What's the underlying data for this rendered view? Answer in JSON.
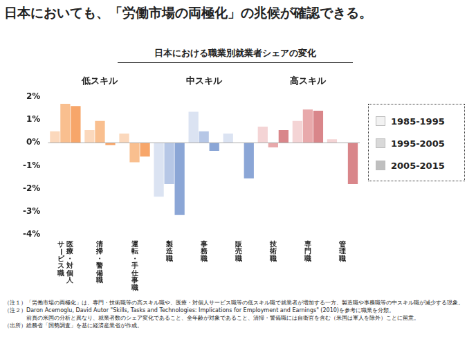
{
  "headline": "日本においても、「労働市場の両極化」の兆候が確認できる。",
  "notes": [
    "（注１）「労働市場の両極化」は、専門・技術職等の高スキル職や、医療・対個人サービス職等の低スキル職で就業者が増加する一方、製造職や事務職等の中スキル職が減少する現象。",
    "（注２）Daron Acemoglu, David Autor \"Skills, Tasks and Technologies: Implications for Employment and Earnings\" (2010)を参考に職業を分類。",
    "　　　　前頁の米国の分析と異なり、就業者数のシェア変化であること、全年齢が対象であること、清掃・警備職には自衛官を含む（米国は軍人を除外）ことに留意。",
    "（出所）総務省「国勢調査」を基に経済産業省が作成。"
  ],
  "chart_data": {
    "type": "bar",
    "title": "日本における職業別就業者シェアの変化",
    "categories": [
      "医療・対個人\nサービス職",
      "清掃・警備職",
      "運転・手仕事職",
      "製造職",
      "事務職",
      "販売職",
      "技術職",
      "専門職",
      "管理職"
    ],
    "groups": [
      {
        "label": "低スキル",
        "size": 3
      },
      {
        "label": "中スキル",
        "size": 3
      },
      {
        "label": "高スキル",
        "size": 3
      }
    ],
    "series": [
      {
        "name": "1985-1995",
        "color": "#f2f2f2",
        "colors": [
          "#fbd8bc",
          "#fbd8bc",
          "#fbd8bc",
          "#dbe3f2",
          "#dbe3f2",
          "#dbe3f2",
          "#f4d4d5",
          "#f4d4d5",
          "#f4d4d5"
        ],
        "values": [
          0.5,
          0.55,
          0.4,
          -2.35,
          1.35,
          0.4,
          0.7,
          0.95,
          0.15
        ]
      },
      {
        "name": "1995-2005",
        "color": "#d9d9d9",
        "colors": [
          "#f9bf8f",
          "#f9bf8f",
          "#f9bf8f",
          "#b6c7e6",
          "#b6c7e6",
          "#b6c7e6",
          "#e8a9ab",
          "#e8a9ab",
          "#e8a9ab"
        ],
        "values": [
          1.7,
          0.95,
          -0.85,
          -1.8,
          0.5,
          0,
          -0.2,
          1.45,
          0
        ]
      },
      {
        "name": "2005-2015",
        "color": "#bfbfbf",
        "colors": [
          "#f7a66a",
          "#f7a66a",
          "#f7a66a",
          "#8ba6d6",
          "#8ba6d6",
          "#8ba6d6",
          "#d9868a",
          "#d9868a",
          "#d9868a"
        ],
        "values": [
          1.6,
          -0.1,
          -0.6,
          -3.15,
          -0.35,
          -1.55,
          0.55,
          1.4,
          -1.8
        ]
      }
    ],
    "ylim": [
      -4,
      2
    ],
    "yticks": [
      {
        "value": -4,
        "label": "-4%"
      },
      {
        "value": -3,
        "label": "-3%"
      },
      {
        "value": -2,
        "label": "-2%"
      },
      {
        "value": -1,
        "label": "-1%"
      },
      {
        "value": 0,
        "label": "0%"
      },
      {
        "value": 1,
        "label": "1%"
      },
      {
        "value": 2,
        "label": "2%"
      }
    ],
    "grid": false,
    "legend": "right"
  }
}
